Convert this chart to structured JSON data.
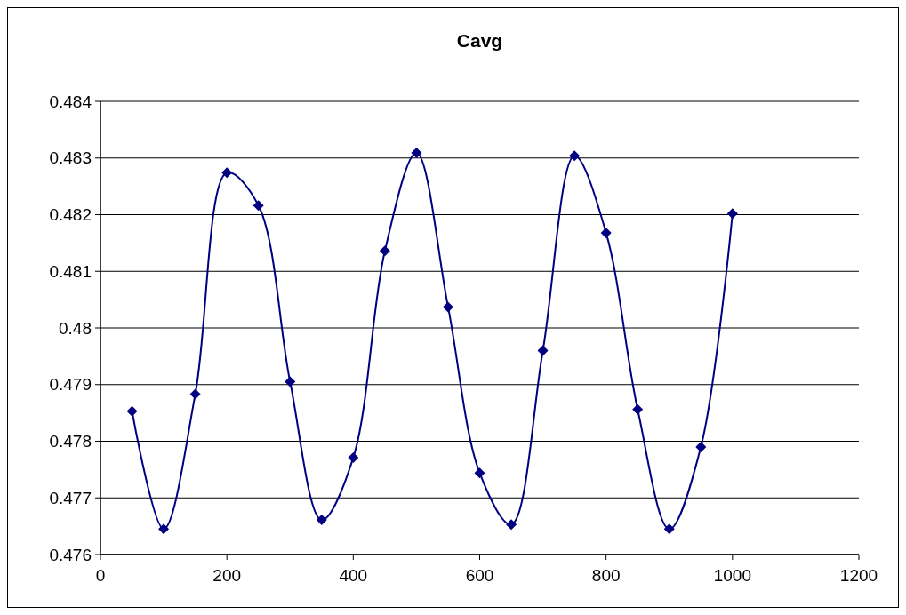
{
  "chart_data": {
    "type": "line",
    "title": "Cavg",
    "x": [
      50,
      100,
      150,
      200,
      250,
      300,
      350,
      400,
      450,
      500,
      550,
      600,
      650,
      700,
      750,
      800,
      850,
      900,
      950,
      1000
    ],
    "series": [
      {
        "color": "#000080",
        "values": [
          0.47853,
          0.47645,
          0.47883,
          0.48274,
          0.48216,
          0.47905,
          0.47661,
          0.47771,
          0.48136,
          0.48309,
          0.48037,
          0.47744,
          0.47653,
          0.4796,
          0.48304,
          0.48168,
          0.47856,
          0.47645,
          0.4779,
          0.48202
        ]
      }
    ],
    "xlim": [
      0,
      1200
    ],
    "xticks": [
      0,
      200,
      400,
      600,
      800,
      1000,
      1200
    ],
    "ylim": [
      0.476,
      0.484
    ],
    "yticks": [
      0.476,
      0.477,
      0.478,
      0.479,
      0.48,
      0.481,
      0.482,
      0.483,
      0.484
    ],
    "grid": "y",
    "marker": "diamond",
    "line_style": "solid"
  }
}
